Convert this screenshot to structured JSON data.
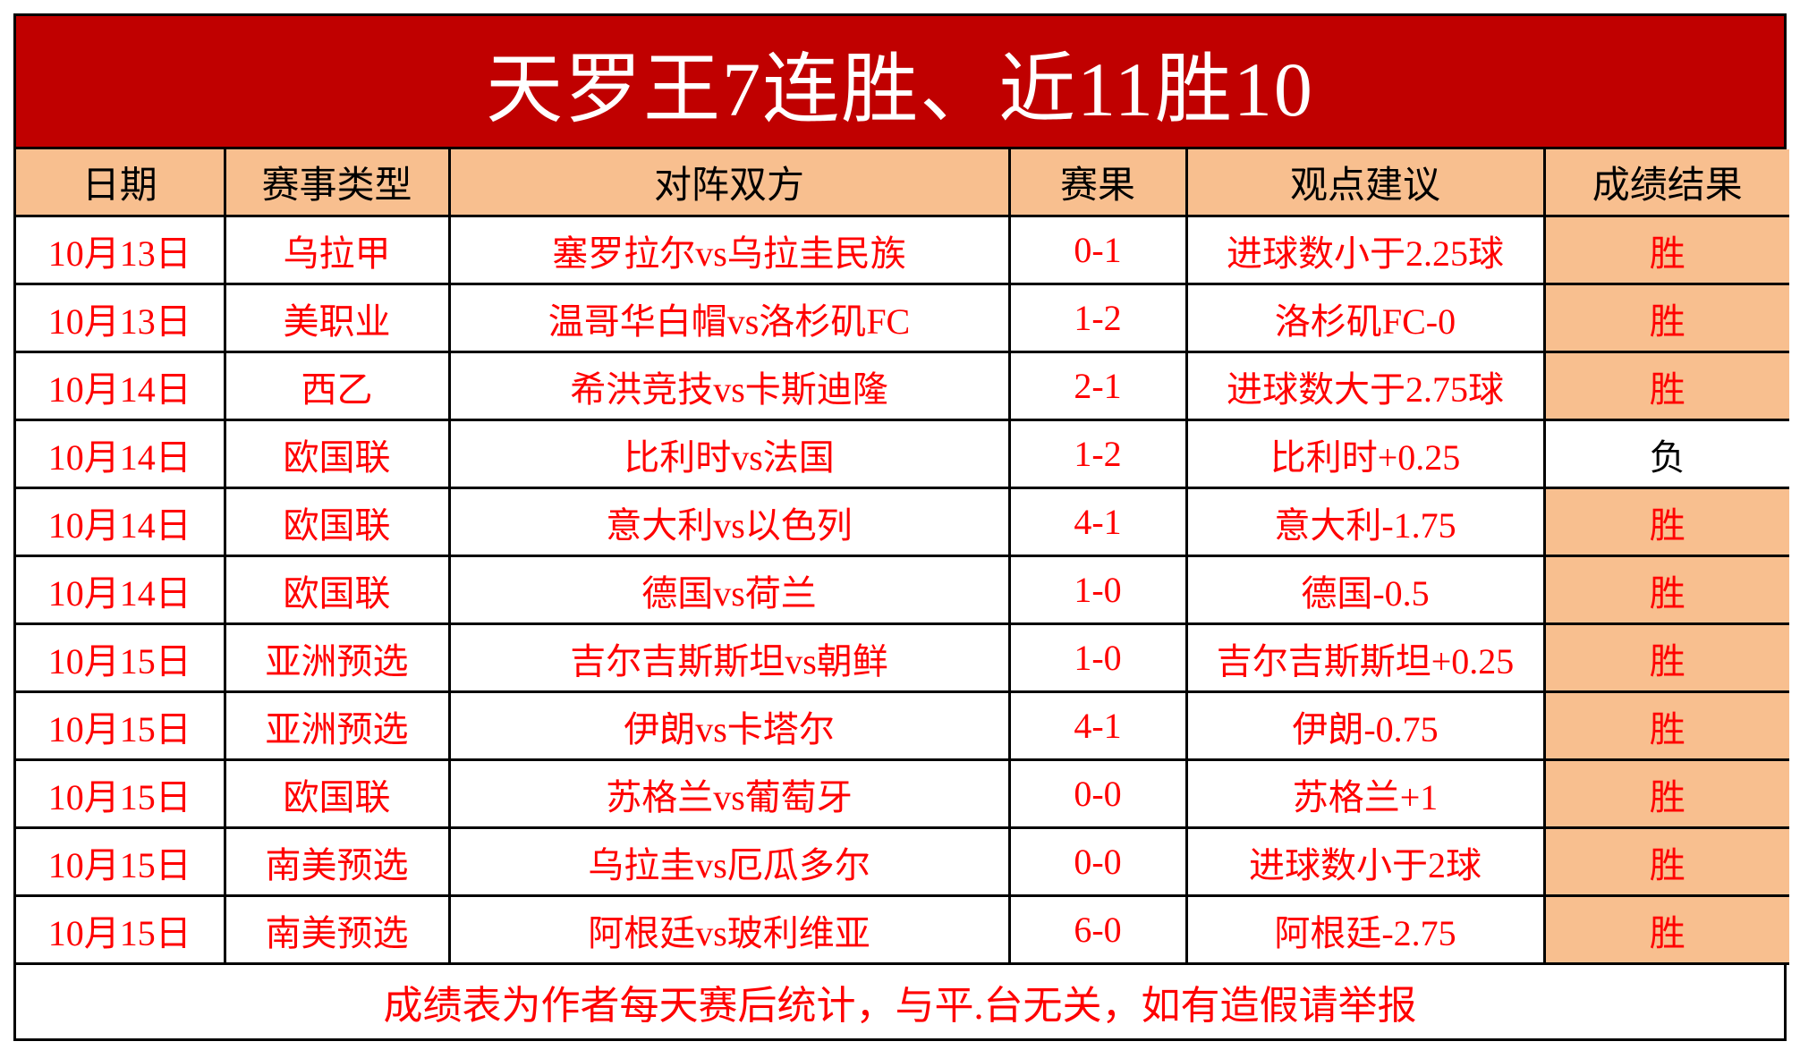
{
  "title": "天罗王7连胜、近11胜10",
  "colors": {
    "title_bg": "#c00000",
    "header_bg": "#f8bf8f",
    "text_red": "#ff0000",
    "win_bg": "#f8bf8f"
  },
  "headers": [
    "日期",
    "赛事类型",
    "对阵双方",
    "赛果",
    "观点建议",
    "成绩结果"
  ],
  "rows": [
    [
      "10月13日",
      "乌拉甲",
      "塞罗拉尔vs乌拉圭民族",
      "0-1",
      "进球数小于2.25球",
      "胜"
    ],
    [
      "10月13日",
      "美职业",
      "温哥华白帽vs洛杉矶FC",
      "1-2",
      "洛杉矶FC-0",
      "胜"
    ],
    [
      "10月14日",
      "西乙",
      "希洪竞技vs卡斯迪隆",
      "2-1",
      "进球数大于2.75球",
      "胜"
    ],
    [
      "10月14日",
      "欧国联",
      "比利时vs法国",
      "1-2",
      "比利时+0.25",
      "负"
    ],
    [
      "10月14日",
      "欧国联",
      "意大利vs以色列",
      "4-1",
      "意大利-1.75",
      "胜"
    ],
    [
      "10月14日",
      "欧国联",
      "德国vs荷兰",
      "1-0",
      "德国-0.5",
      "胜"
    ],
    [
      "10月15日",
      "亚洲预选",
      "吉尔吉斯斯坦vs朝鲜",
      "1-0",
      "吉尔吉斯斯坦+0.25",
      "胜"
    ],
    [
      "10月15日",
      "亚洲预选",
      "伊朗vs卡塔尔",
      "4-1",
      "伊朗-0.75",
      "胜"
    ],
    [
      "10月15日",
      "欧国联",
      "苏格兰vs葡萄牙",
      "0-0",
      "苏格兰+1",
      "胜"
    ],
    [
      "10月15日",
      "南美预选",
      "乌拉圭vs厄瓜多尔",
      "0-0",
      "进球数小于2球",
      "胜"
    ],
    [
      "10月15日",
      "南美预选",
      "阿根廷vs玻利维亚",
      "6-0",
      "阿根廷-2.75",
      "胜"
    ]
  ],
  "footer": "成绩表为作者每天赛后统计，与平.台无关，如有造假请举报"
}
